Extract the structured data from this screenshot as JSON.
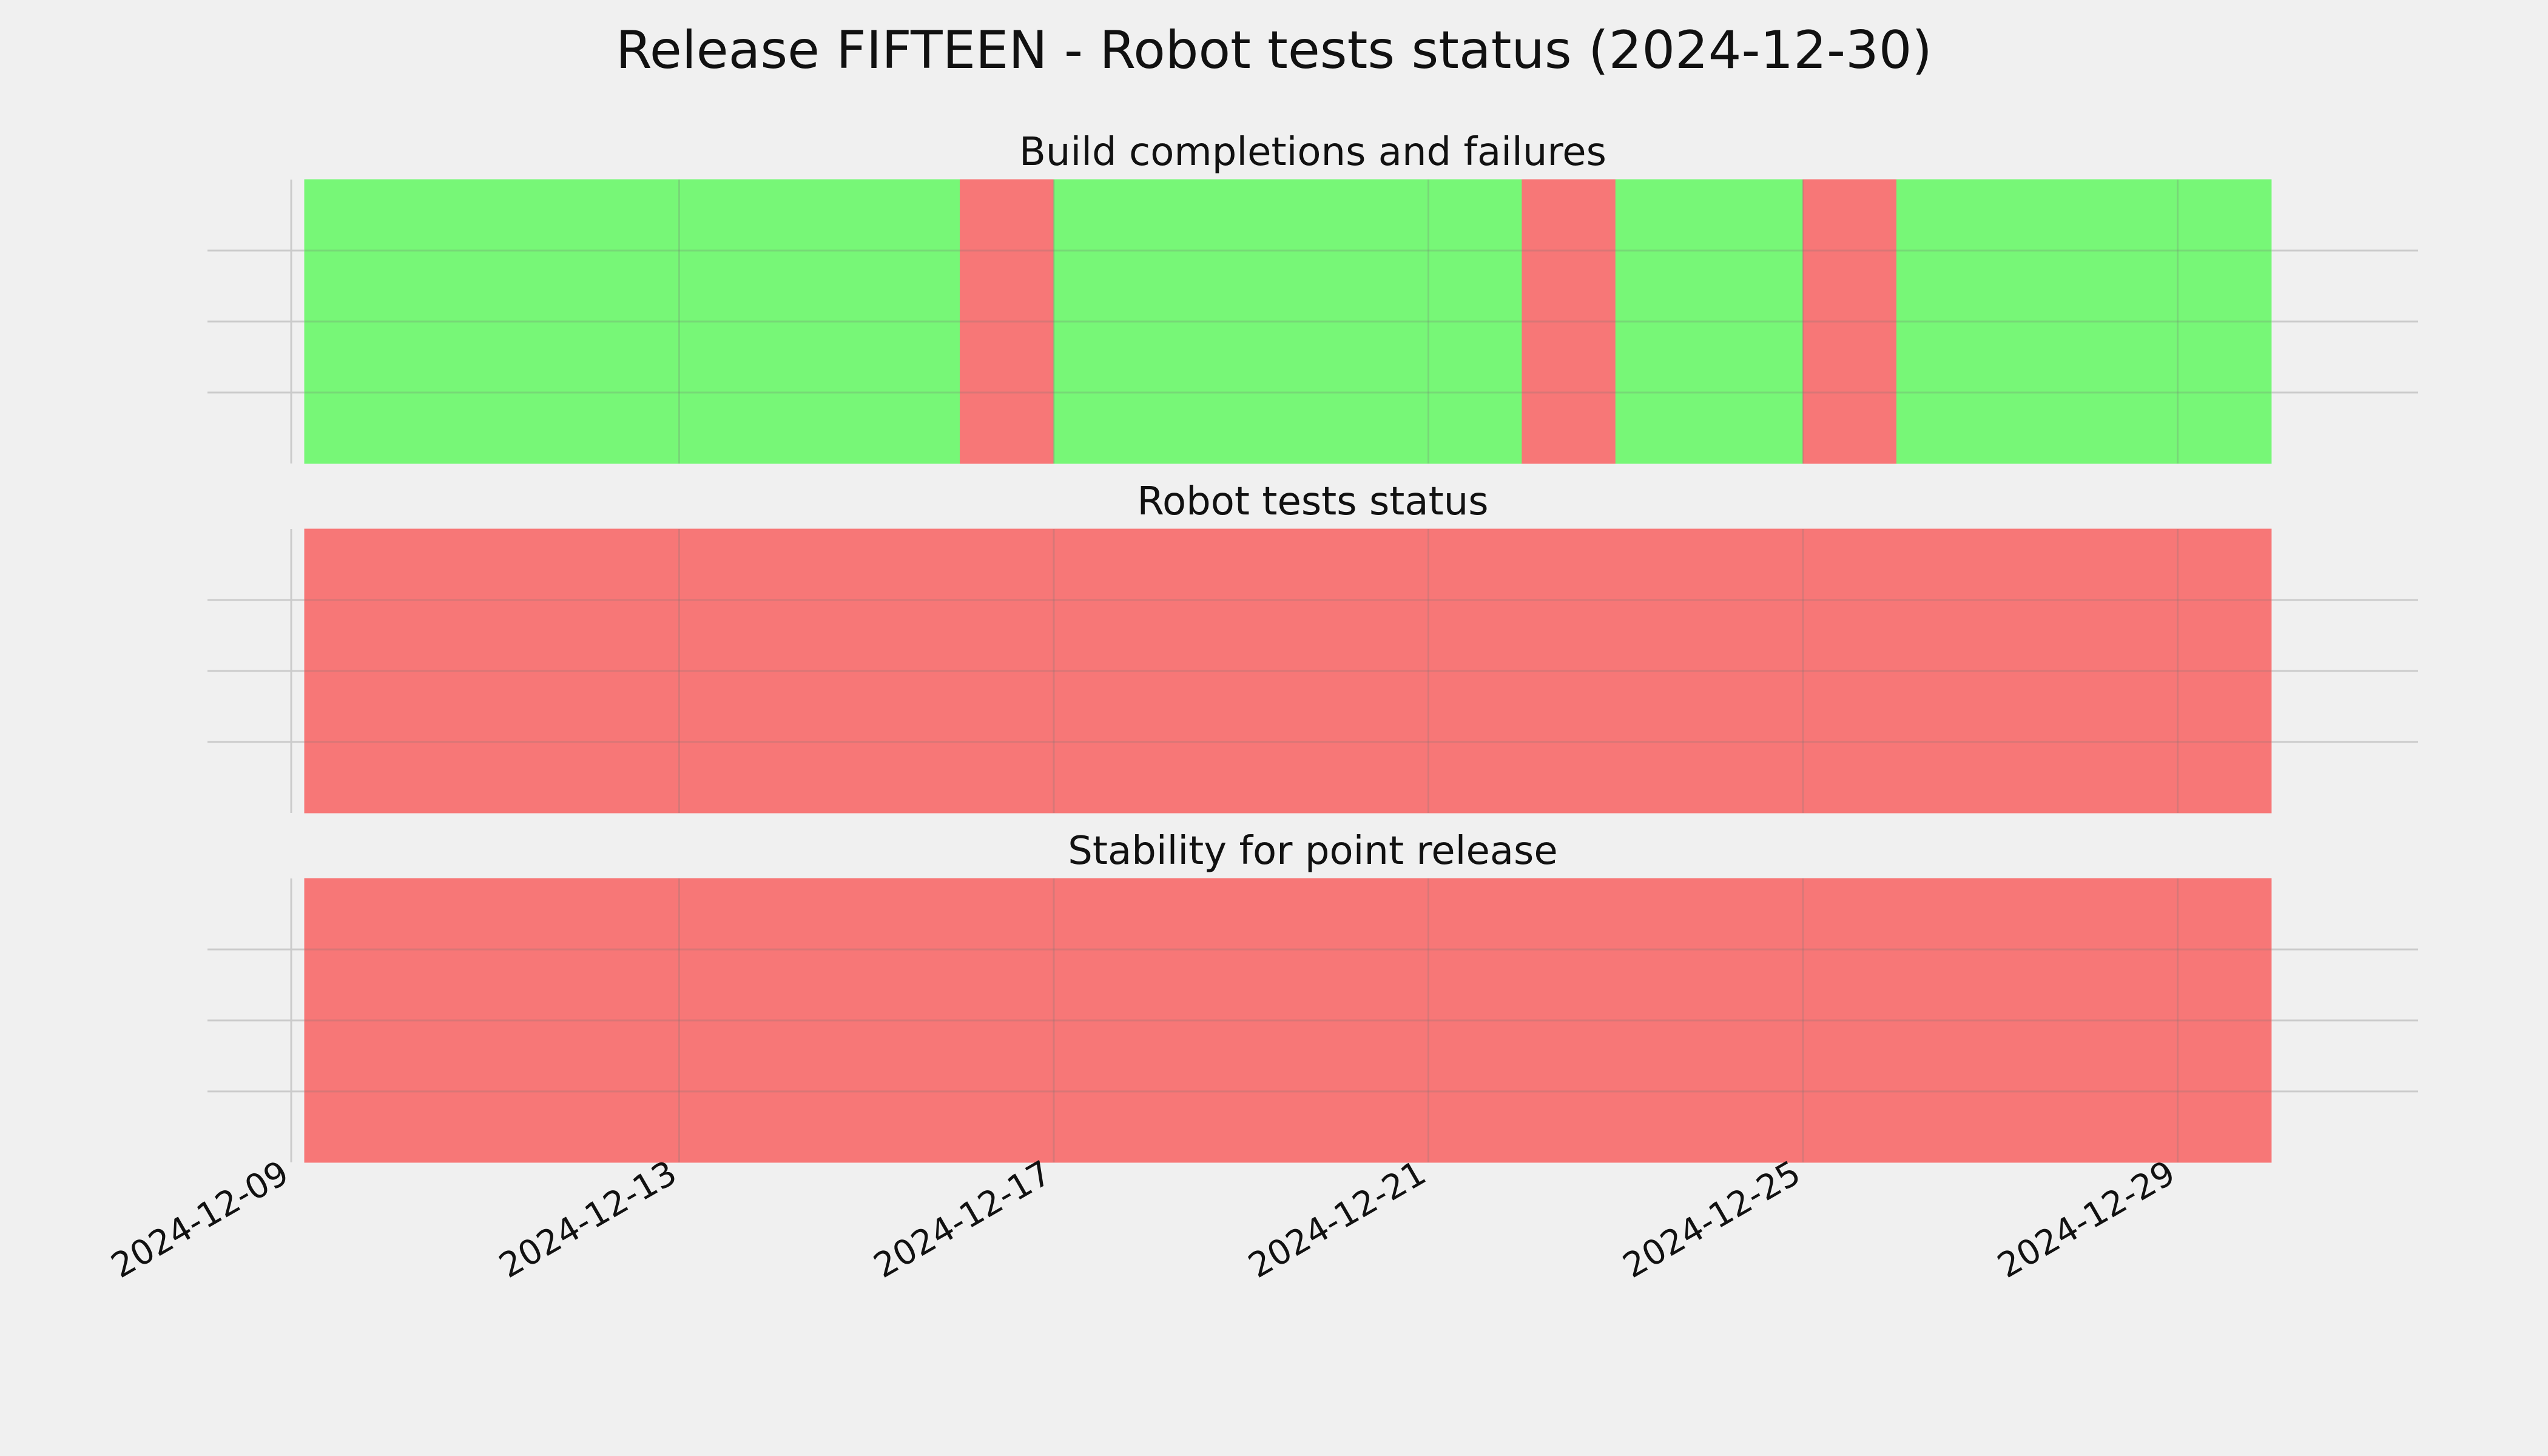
{
  "chart_data": {
    "type": "timeline",
    "title": "Release FIFTEEN - Robot tests status (2024-12-30)",
    "x_tick_labels": [
      "2024-12-09",
      "2024-12-13",
      "2024-12-17",
      "2024-12-21",
      "2024-12-25",
      "2024-12-29"
    ],
    "xlim": [
      "2024-12-09",
      "2024-12-31"
    ],
    "grid": true,
    "colors": {
      "ok": "#77f777",
      "fail": "#f77777",
      "background": "#f0f0f0"
    },
    "panels": [
      {
        "title": "Build completions and failures",
        "segments": [
          {
            "start": "2024-12-09",
            "end": "2024-12-16",
            "status": "ok"
          },
          {
            "start": "2024-12-16",
            "end": "2024-12-17",
            "status": "fail"
          },
          {
            "start": "2024-12-17",
            "end": "2024-12-22",
            "status": "ok"
          },
          {
            "start": "2024-12-22",
            "end": "2024-12-23",
            "status": "fail"
          },
          {
            "start": "2024-12-23",
            "end": "2024-12-25",
            "status": "ok"
          },
          {
            "start": "2024-12-25",
            "end": "2024-12-26",
            "status": "fail"
          },
          {
            "start": "2024-12-26",
            "end": "2024-12-30",
            "status": "ok"
          }
        ]
      },
      {
        "title": "Robot tests status",
        "segments": [
          {
            "start": "2024-12-09",
            "end": "2024-12-30",
            "status": "fail"
          }
        ]
      },
      {
        "title": "Stability for point release",
        "segments": [
          {
            "start": "2024-12-09",
            "end": "2024-12-30",
            "status": "fail"
          }
        ]
      }
    ]
  }
}
